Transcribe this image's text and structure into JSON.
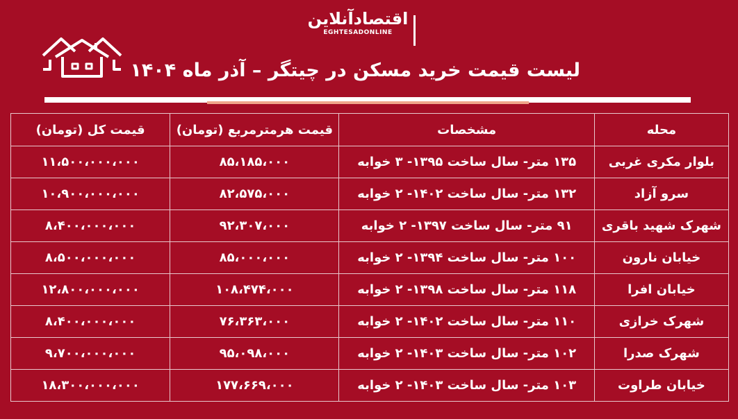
{
  "logo": {
    "fa": "اقتصادآنلاین",
    "en": "EGHTESADONLINE"
  },
  "title": "لیست قیمت خرید مسکن در چیتگر – آذر ماه ۱۴۰۴",
  "colors": {
    "background": "#a50d25",
    "accent_rule": "#f0a58a"
  },
  "icons": {
    "header": "house-icon"
  },
  "table": {
    "headers": [
      "محله",
      "مشخصات",
      "قیمت هرمترمربع (تومان)",
      "قیمت کل (تومان)"
    ],
    "rows": [
      [
        "بلوار مکری غربی",
        "۱۳۵ متر- سال ساخت ۱۳۹۵- ۳ خوابه",
        "۸۵،۱۸۵،۰۰۰",
        "۱۱،۵۰۰،۰۰۰،۰۰۰"
      ],
      [
        "سرو آزاد",
        "۱۳۲ متر- سال ساخت ۱۴۰۲- ۲ خوابه",
        "۸۲،۵۷۵،۰۰۰",
        "۱۰،۹۰۰،۰۰۰،۰۰۰"
      ],
      [
        "شهرک شهید باقری",
        "۹۱ متر- سال ساخت ۱۳۹۷- ۲ خوابه",
        "۹۲،۳۰۷،۰۰۰",
        "۸،۴۰۰،۰۰۰،۰۰۰"
      ],
      [
        "خیابان نارون",
        "۱۰۰ متر- سال ساخت ۱۳۹۴- ۲ خوابه",
        "۸۵،۰۰۰،۰۰۰",
        "۸،۵۰۰،۰۰۰،۰۰۰"
      ],
      [
        "خیابان افرا",
        "۱۱۸ متر- سال ساخت ۱۳۹۸- ۲ خوابه",
        "۱۰۸،۴۷۴،۰۰۰",
        "۱۲،۸۰۰،۰۰۰،۰۰۰"
      ],
      [
        "شهرک خرازی",
        "۱۱۰ متر- سال ساخت ۱۴۰۲- ۲ خوابه",
        "۷۶،۳۶۳،۰۰۰",
        "۸،۴۰۰،۰۰۰،۰۰۰"
      ],
      [
        "شهرک صدرا",
        "۱۰۲ متر- سال ساخت ۱۴۰۳- ۲ خوابه",
        "۹۵،۰۹۸،۰۰۰",
        "۹،۷۰۰،۰۰۰،۰۰۰"
      ],
      [
        "خیابان طراوت",
        "۱۰۳ متر- سال ساخت ۱۴۰۳- ۲ خوابه",
        "۱۷۷،۶۶۹،۰۰۰",
        "۱۸،۳۰۰،۰۰۰،۰۰۰"
      ]
    ]
  }
}
